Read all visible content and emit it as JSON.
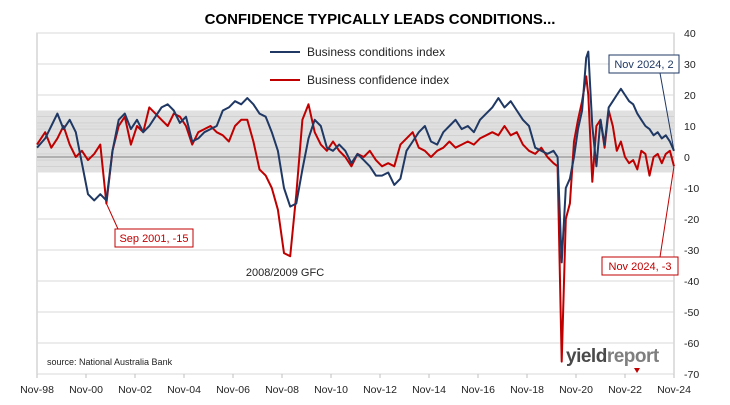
{
  "chart_data": {
    "type": "line",
    "title": "CONFIDENCE TYPICALLY LEADS CONDITIONS...",
    "source": "source: National Australia Bank",
    "brand": {
      "part1": "yield",
      "part2": "report"
    },
    "x_tick_labels": [
      "Nov-98",
      "Nov-00",
      "Nov-02",
      "Nov-04",
      "Nov-06",
      "Nov-08",
      "Nov-10",
      "Nov-12",
      "Nov-14",
      "Nov-16",
      "Nov-18",
      "Nov-20",
      "Nov-22",
      "Nov-24"
    ],
    "x_range": [
      "1998-11",
      "2024-11"
    ],
    "ylim": [
      -70,
      40
    ],
    "y_ticks": [
      40,
      30,
      20,
      10,
      0,
      -10,
      -20,
      -30,
      -40,
      -50,
      -60,
      -70
    ],
    "y_axis_side": "right",
    "grid": "horizontal",
    "shaded_band": [
      -5,
      15
    ],
    "colors": {
      "conditions": "#1f3864",
      "confidence": "#c00000",
      "band": "#e0e0e0"
    },
    "legend_position": "top-center",
    "series": [
      {
        "name": "Business conditions index",
        "color": "#1f3864",
        "points": [
          [
            "1998-11",
            3
          ],
          [
            "1999-03",
            6
          ],
          [
            "1999-06",
            10
          ],
          [
            "1999-09",
            14
          ],
          [
            "1999-12",
            9
          ],
          [
            "2000-03",
            12
          ],
          [
            "2000-06",
            8
          ],
          [
            "2000-09",
            -2
          ],
          [
            "2000-12",
            -12
          ],
          [
            "2001-03",
            -14
          ],
          [
            "2001-06",
            -12
          ],
          [
            "2001-09",
            -14
          ],
          [
            "2001-12",
            2
          ],
          [
            "2002-03",
            12
          ],
          [
            "2002-06",
            14
          ],
          [
            "2002-09",
            9
          ],
          [
            "2002-12",
            12
          ],
          [
            "2003-03",
            8
          ],
          [
            "2003-06",
            10
          ],
          [
            "2003-09",
            13
          ],
          [
            "2003-12",
            16
          ],
          [
            "2004-03",
            17
          ],
          [
            "2004-06",
            15
          ],
          [
            "2004-09",
            11
          ],
          [
            "2004-12",
            13
          ],
          [
            "2005-03",
            5
          ],
          [
            "2005-06",
            6
          ],
          [
            "2005-09",
            8
          ],
          [
            "2005-12",
            9
          ],
          [
            "2006-03",
            10
          ],
          [
            "2006-06",
            15
          ],
          [
            "2006-09",
            16
          ],
          [
            "2006-12",
            18
          ],
          [
            "2007-03",
            17
          ],
          [
            "2007-06",
            19
          ],
          [
            "2007-09",
            17
          ],
          [
            "2007-12",
            14
          ],
          [
            "2008-03",
            13
          ],
          [
            "2008-06",
            8
          ],
          [
            "2008-09",
            2
          ],
          [
            "2008-12",
            -10
          ],
          [
            "2009-03",
            -16
          ],
          [
            "2009-06",
            -15
          ],
          [
            "2009-09",
            -4
          ],
          [
            "2009-12",
            6
          ],
          [
            "2010-03",
            12
          ],
          [
            "2010-06",
            10
          ],
          [
            "2010-09",
            3
          ],
          [
            "2010-12",
            2
          ],
          [
            "2011-03",
            4
          ],
          [
            "2011-06",
            2
          ],
          [
            "2011-09",
            -2
          ],
          [
            "2011-12",
            1
          ],
          [
            "2012-03",
            -1
          ],
          [
            "2012-06",
            -3
          ],
          [
            "2012-09",
            -6
          ],
          [
            "2012-12",
            -6
          ],
          [
            "2013-03",
            -5
          ],
          [
            "2013-06",
            -9
          ],
          [
            "2013-09",
            -7
          ],
          [
            "2013-12",
            2
          ],
          [
            "2014-03",
            5
          ],
          [
            "2014-06",
            8
          ],
          [
            "2014-09",
            10
          ],
          [
            "2014-12",
            5
          ],
          [
            "2015-03",
            4
          ],
          [
            "2015-06",
            8
          ],
          [
            "2015-09",
            10
          ],
          [
            "2015-12",
            12
          ],
          [
            "2016-03",
            9
          ],
          [
            "2016-06",
            10
          ],
          [
            "2016-09",
            8
          ],
          [
            "2016-12",
            12
          ],
          [
            "2017-03",
            14
          ],
          [
            "2017-06",
            16
          ],
          [
            "2017-09",
            19
          ],
          [
            "2017-12",
            16
          ],
          [
            "2018-03",
            18
          ],
          [
            "2018-06",
            15
          ],
          [
            "2018-09",
            12
          ],
          [
            "2018-12",
            10
          ],
          [
            "2019-03",
            3
          ],
          [
            "2019-06",
            2
          ],
          [
            "2019-09",
            1
          ],
          [
            "2019-12",
            2
          ],
          [
            "2020-02",
            0
          ],
          [
            "2020-04",
            -34
          ],
          [
            "2020-06",
            -10
          ],
          [
            "2020-08",
            -7
          ],
          [
            "2020-10",
            0
          ],
          [
            "2020-12",
            9
          ],
          [
            "2021-02",
            15
          ],
          [
            "2021-04",
            32
          ],
          [
            "2021-05",
            34
          ],
          [
            "2021-07",
            10
          ],
          [
            "2021-09",
            -3
          ],
          [
            "2021-11",
            12
          ],
          [
            "2022-01",
            4
          ],
          [
            "2022-03",
            16
          ],
          [
            "2022-05",
            18
          ],
          [
            "2022-07",
            20
          ],
          [
            "2022-09",
            22
          ],
          [
            "2022-11",
            20
          ],
          [
            "2023-01",
            18
          ],
          [
            "2023-03",
            17
          ],
          [
            "2023-05",
            14
          ],
          [
            "2023-07",
            12
          ],
          [
            "2023-09",
            10
          ],
          [
            "2023-11",
            9
          ],
          [
            "2024-01",
            7
          ],
          [
            "2024-03",
            8
          ],
          [
            "2024-05",
            6
          ],
          [
            "2024-07",
            7
          ],
          [
            "2024-09",
            5
          ],
          [
            "2024-11",
            2
          ]
        ]
      },
      {
        "name": "Business confidence index",
        "color": "#c00000",
        "points": [
          [
            "1998-11",
            4
          ],
          [
            "1999-03",
            8
          ],
          [
            "1999-06",
            3
          ],
          [
            "1999-09",
            6
          ],
          [
            "1999-12",
            10
          ],
          [
            "2000-03",
            4
          ],
          [
            "2000-06",
            0
          ],
          [
            "2000-09",
            2
          ],
          [
            "2000-12",
            -1
          ],
          [
            "2001-03",
            1
          ],
          [
            "2001-06",
            4
          ],
          [
            "2001-09",
            -15
          ],
          [
            "2001-12",
            2
          ],
          [
            "2002-03",
            10
          ],
          [
            "2002-06",
            13
          ],
          [
            "2002-09",
            4
          ],
          [
            "2002-12",
            10
          ],
          [
            "2003-03",
            8
          ],
          [
            "2003-06",
            16
          ],
          [
            "2003-09",
            14
          ],
          [
            "2003-12",
            12
          ],
          [
            "2004-03",
            10
          ],
          [
            "2004-06",
            14
          ],
          [
            "2004-09",
            13
          ],
          [
            "2004-12",
            10
          ],
          [
            "2005-03",
            4
          ],
          [
            "2005-06",
            8
          ],
          [
            "2005-09",
            9
          ],
          [
            "2005-12",
            10
          ],
          [
            "2006-03",
            8
          ],
          [
            "2006-06",
            7
          ],
          [
            "2006-09",
            5
          ],
          [
            "2006-12",
            10
          ],
          [
            "2007-03",
            12
          ],
          [
            "2007-06",
            12
          ],
          [
            "2007-09",
            5
          ],
          [
            "2007-12",
            -4
          ],
          [
            "2008-03",
            -6
          ],
          [
            "2008-06",
            -10
          ],
          [
            "2008-09",
            -17
          ],
          [
            "2008-12",
            -31
          ],
          [
            "2009-03",
            -32
          ],
          [
            "2009-06",
            -12
          ],
          [
            "2009-09",
            12
          ],
          [
            "2009-12",
            17
          ],
          [
            "2010-03",
            8
          ],
          [
            "2010-06",
            4
          ],
          [
            "2010-09",
            2
          ],
          [
            "2010-12",
            5
          ],
          [
            "2011-03",
            2
          ],
          [
            "2011-06",
            0
          ],
          [
            "2011-09",
            -3
          ],
          [
            "2011-12",
            1
          ],
          [
            "2012-03",
            0
          ],
          [
            "2012-06",
            2
          ],
          [
            "2012-09",
            -1
          ],
          [
            "2012-12",
            -3
          ],
          [
            "2013-03",
            -2
          ],
          [
            "2013-06",
            -3
          ],
          [
            "2013-09",
            4
          ],
          [
            "2013-12",
            6
          ],
          [
            "2014-03",
            8
          ],
          [
            "2014-06",
            3
          ],
          [
            "2014-09",
            2
          ],
          [
            "2014-12",
            0
          ],
          [
            "2015-03",
            2
          ],
          [
            "2015-06",
            3
          ],
          [
            "2015-09",
            5
          ],
          [
            "2015-12",
            3
          ],
          [
            "2016-03",
            4
          ],
          [
            "2016-06",
            5
          ],
          [
            "2016-09",
            4
          ],
          [
            "2016-12",
            6
          ],
          [
            "2017-03",
            7
          ],
          [
            "2017-06",
            8
          ],
          [
            "2017-09",
            7
          ],
          [
            "2017-12",
            10
          ],
          [
            "2018-03",
            7
          ],
          [
            "2018-06",
            8
          ],
          [
            "2018-09",
            4
          ],
          [
            "2018-12",
            2
          ],
          [
            "2019-03",
            1
          ],
          [
            "2019-06",
            3
          ],
          [
            "2019-09",
            0
          ],
          [
            "2019-12",
            -2
          ],
          [
            "2020-02",
            -3
          ],
          [
            "2020-04",
            -66
          ],
          [
            "2020-06",
            -20
          ],
          [
            "2020-08",
            -15
          ],
          [
            "2020-10",
            5
          ],
          [
            "2020-12",
            12
          ],
          [
            "2021-02",
            18
          ],
          [
            "2021-04",
            26
          ],
          [
            "2021-05",
            20
          ],
          [
            "2021-07",
            -8
          ],
          [
            "2021-09",
            10
          ],
          [
            "2021-11",
            12
          ],
          [
            "2022-01",
            3
          ],
          [
            "2022-03",
            15
          ],
          [
            "2022-05",
            10
          ],
          [
            "2022-07",
            2
          ],
          [
            "2022-09",
            5
          ],
          [
            "2022-11",
            0
          ],
          [
            "2023-01",
            -2
          ],
          [
            "2023-03",
            -1
          ],
          [
            "2023-05",
            -4
          ],
          [
            "2023-07",
            2
          ],
          [
            "2023-09",
            1
          ],
          [
            "2023-11",
            -6
          ],
          [
            "2024-01",
            0
          ],
          [
            "2024-03",
            1
          ],
          [
            "2024-05",
            -2
          ],
          [
            "2024-07",
            1
          ],
          [
            "2024-09",
            2
          ],
          [
            "2024-11",
            -3
          ]
        ]
      }
    ],
    "annotations": [
      {
        "id": "sep2001",
        "label": "Sep 2001, -15",
        "color": "#c00000",
        "boxed": true,
        "x": "2001-09",
        "y": -15
      },
      {
        "id": "gfc",
        "label": "2008/2009 GFC",
        "color": "#222222",
        "boxed": false,
        "x": "2009-03",
        "y": -32
      },
      {
        "id": "nov2024cond",
        "label": "Nov 2024, 2",
        "color": "#1f3864",
        "boxed": true,
        "x": "2024-11",
        "y": 2
      },
      {
        "id": "nov2024conf",
        "label": "Nov 2024, -3",
        "color": "#c00000",
        "boxed": true,
        "x": "2024-11",
        "y": -3
      }
    ]
  }
}
